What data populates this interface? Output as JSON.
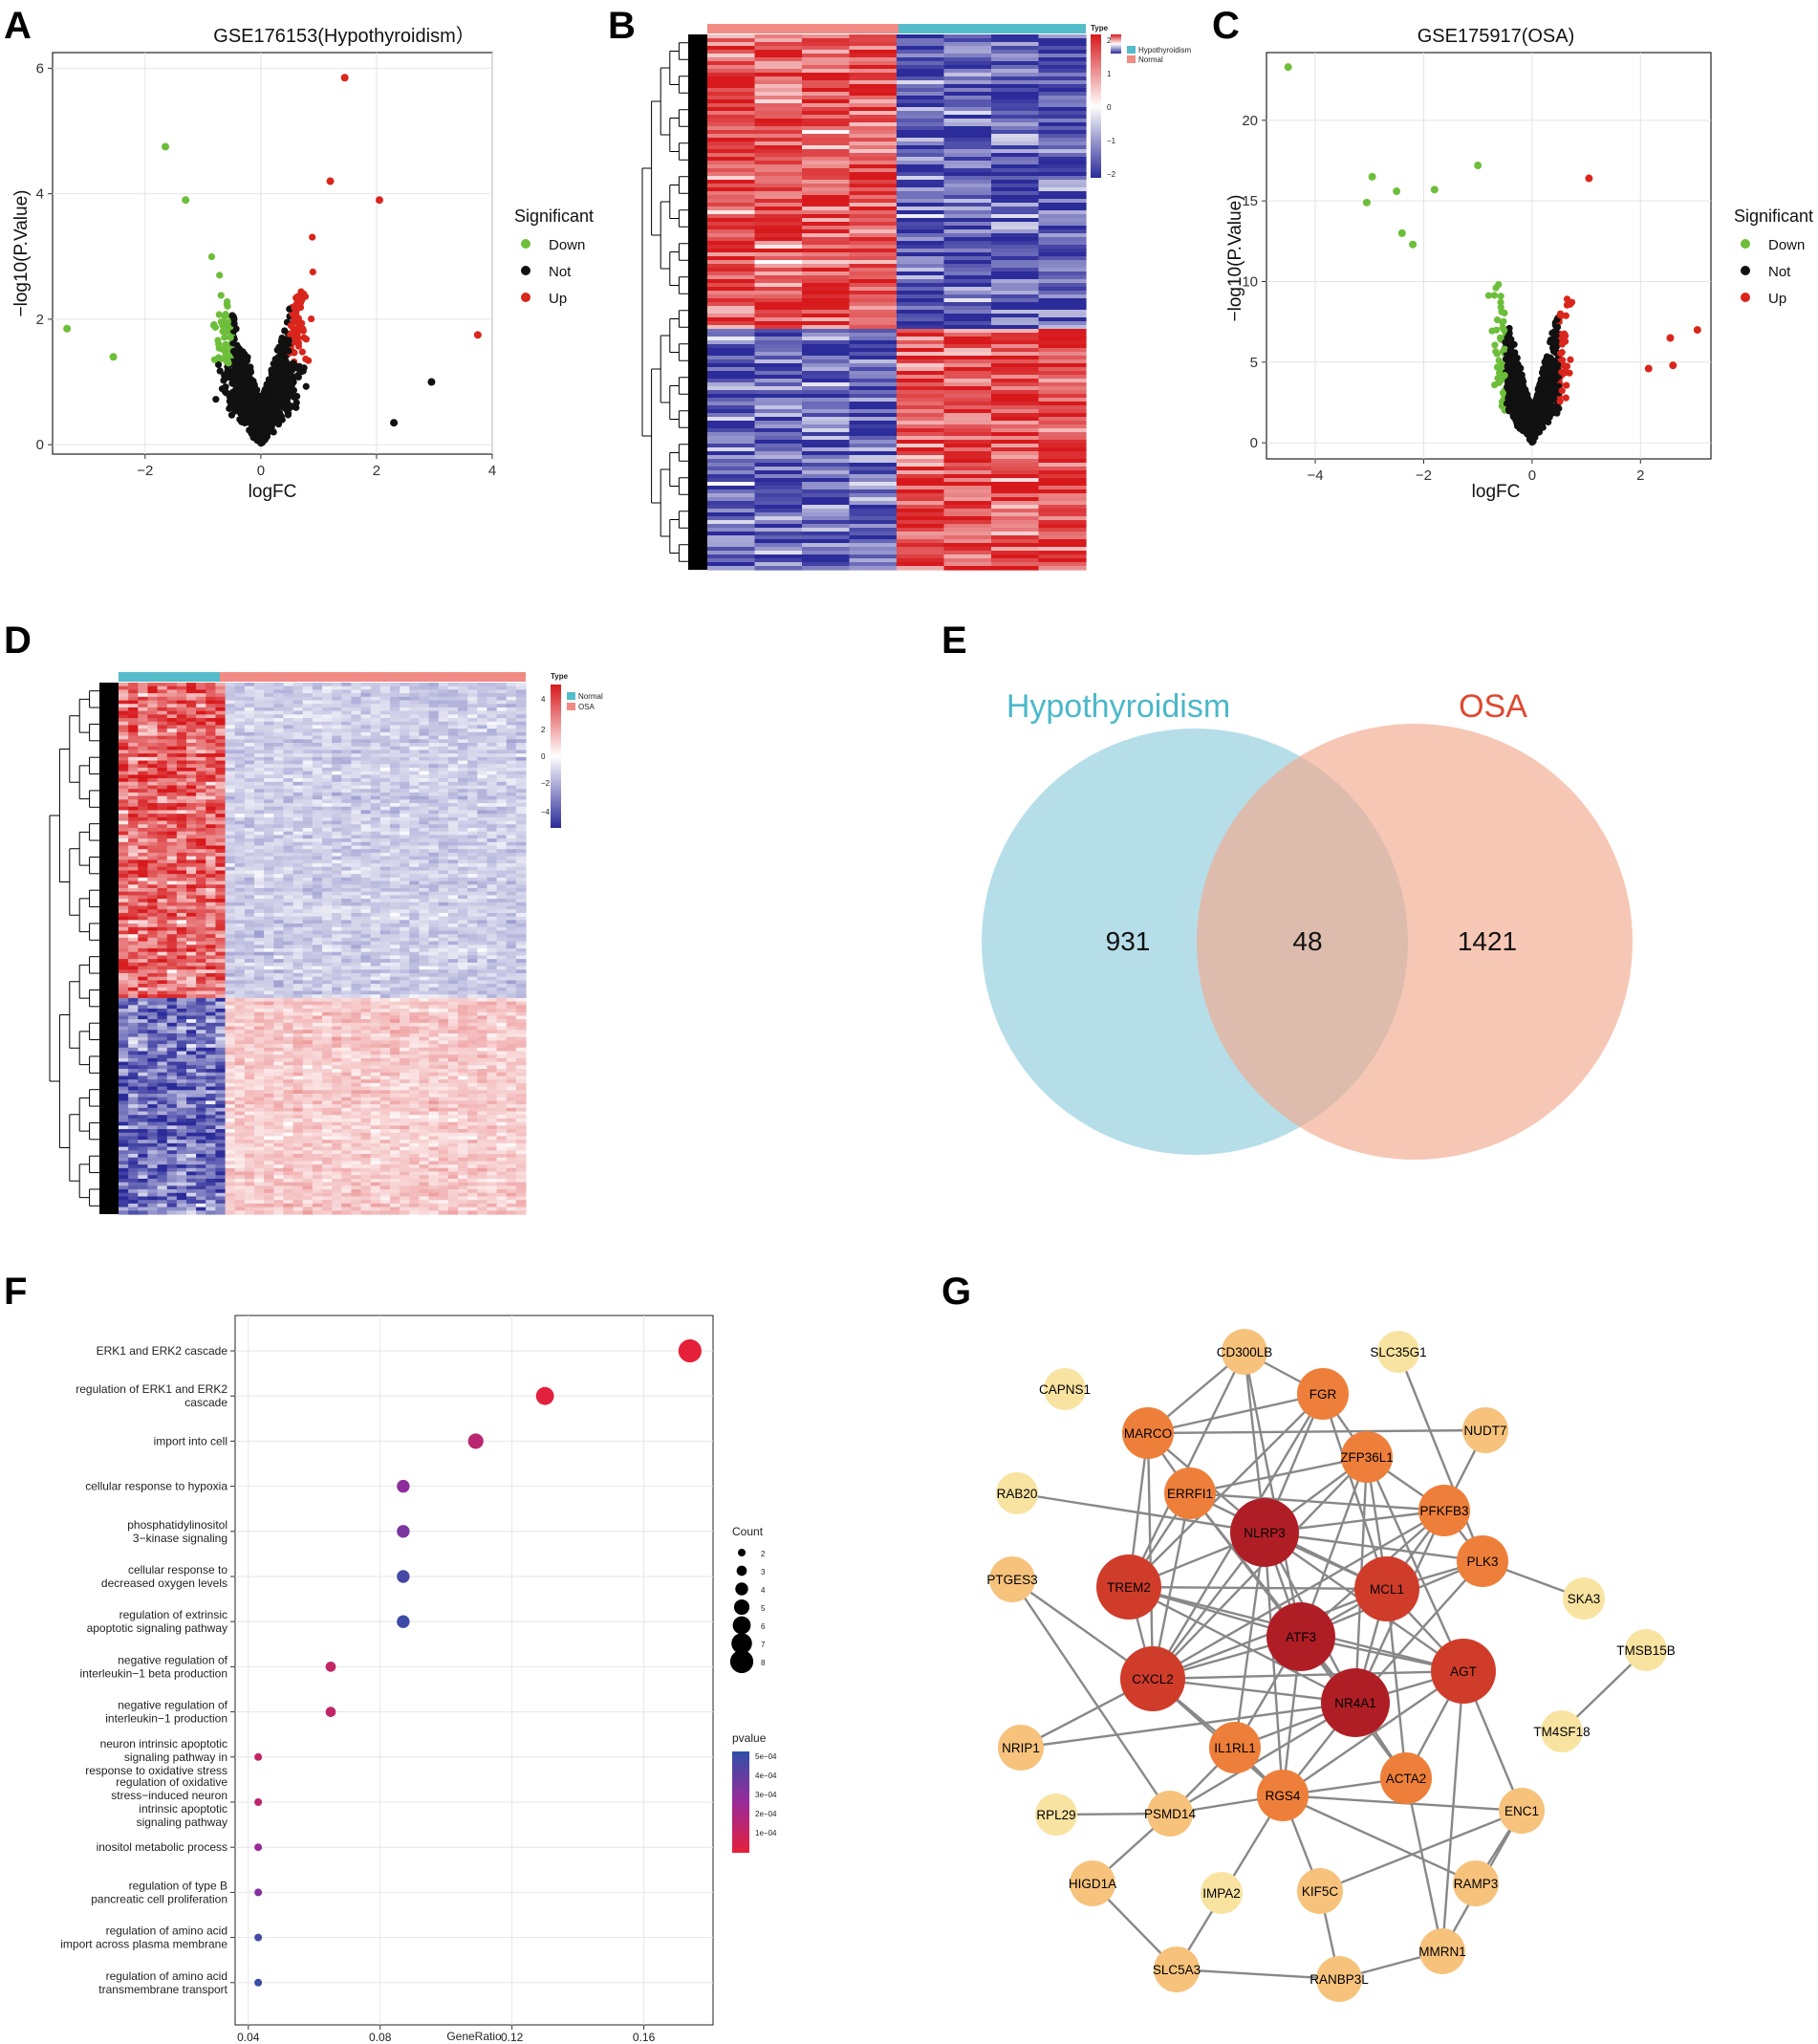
{
  "panel_letters": [
    "A",
    "B",
    "C",
    "D",
    "E",
    "F",
    "G"
  ],
  "colors": {
    "down": "#6DBE3A",
    "not": "#111111",
    "up": "#D9261C",
    "heat_high": "#D7191C",
    "heat_mid": "#FFFFFF",
    "heat_low": "#2B2B9A",
    "type_teal": "#55BCC9",
    "type_salmon": "#F08C85",
    "venn_left": "#A8D8E5",
    "venn_right": "#F3A98E",
    "venn_left_title": "#4BB8C9",
    "venn_right_title": "#E0472E"
  },
  "chart_data": [
    {
      "panel": "A",
      "type": "scatter",
      "title": "GSE176153(Hypothyroidism）",
      "xlabel": "logFC",
      "ylabel": "−log10(P.Value)",
      "xlim": [
        -3.6,
        4.0
      ],
      "ylim": [
        -0.15,
        6.25
      ],
      "xticks": [
        -2,
        0,
        2,
        4
      ],
      "yticks": [
        0,
        2,
        4,
        6
      ],
      "xtick_labels": [
        "−2",
        "0",
        "2",
        "4"
      ],
      "ytick_labels": [
        "0",
        "2",
        "4",
        "6"
      ],
      "legend": {
        "title": "Significant",
        "items": [
          "Down",
          "Not",
          "Up"
        ],
        "position": "right"
      },
      "highlight_points": [
        {
          "x": 1.45,
          "y": 5.85,
          "group": "Up"
        },
        {
          "x": -1.65,
          "y": 4.75,
          "group": "Down"
        },
        {
          "x": -3.35,
          "y": 1.85,
          "group": "Down"
        },
        {
          "x": 3.75,
          "y": 1.75,
          "group": "Up"
        },
        {
          "x": 2.95,
          "y": 1.0,
          "group": "Not"
        },
        {
          "x": 2.3,
          "y": 0.35,
          "group": "Not"
        },
        {
          "x": 2.05,
          "y": 3.9,
          "group": "Up"
        },
        {
          "x": 1.2,
          "y": 4.2,
          "group": "Up"
        },
        {
          "x": -2.55,
          "y": 1.4,
          "group": "Down"
        },
        {
          "x": -1.3,
          "y": 3.9,
          "group": "Down"
        }
      ]
    },
    {
      "panel": "B",
      "type": "heatmap",
      "legend_title": "Type",
      "groups": [
        "Hypothyroidism",
        "Normal"
      ],
      "scale_ticks": [
        "2",
        "1",
        "0",
        "−1",
        "−2"
      ]
    },
    {
      "panel": "C",
      "type": "scatter",
      "title": "GSE175917(OSA)",
      "xlabel": "logFC",
      "ylabel": "−log10(P.Value)",
      "xlim": [
        -4.9,
        3.3
      ],
      "ylim": [
        -1.0,
        24.2
      ],
      "xticks": [
        -4,
        -2,
        0,
        2
      ],
      "yticks": [
        0,
        5,
        10,
        15,
        20
      ],
      "xtick_labels": [
        "−4",
        "−2",
        "0",
        "2"
      ],
      "ytick_labels": [
        "0",
        "5",
        "10",
        "15",
        "20"
      ],
      "legend": {
        "title": "Significant",
        "items": [
          "Down",
          "Not",
          "Up"
        ],
        "position": "right"
      },
      "highlight_points": [
        {
          "x": -4.5,
          "y": 23.3,
          "group": "Down"
        },
        {
          "x": -2.95,
          "y": 16.5,
          "group": "Down"
        },
        {
          "x": -3.05,
          "y": 14.9,
          "group": "Down"
        },
        {
          "x": -2.5,
          "y": 15.6,
          "group": "Down"
        },
        {
          "x": -1.8,
          "y": 15.7,
          "group": "Down"
        },
        {
          "x": -1.0,
          "y": 17.2,
          "group": "Down"
        },
        {
          "x": 1.05,
          "y": 16.4,
          "group": "Up"
        },
        {
          "x": 2.55,
          "y": 6.5,
          "group": "Up"
        },
        {
          "x": 3.05,
          "y": 7.0,
          "group": "Up"
        },
        {
          "x": 2.6,
          "y": 4.8,
          "group": "Up"
        },
        {
          "x": 2.15,
          "y": 4.6,
          "group": "Up"
        },
        {
          "x": -2.4,
          "y": 13.0,
          "group": "Down"
        },
        {
          "x": -2.2,
          "y": 12.3,
          "group": "Down"
        }
      ]
    },
    {
      "panel": "D",
      "type": "heatmap",
      "legend_title": "Type",
      "groups": [
        "Normal",
        "OSA"
      ],
      "scale_ticks": [
        "4",
        "2",
        "0",
        "−2",
        "−4"
      ]
    },
    {
      "panel": "E",
      "type": "venn",
      "sets": [
        "Hypothyroidism",
        "OSA"
      ],
      "only_left": "931",
      "intersection": "48",
      "only_right": "1421"
    },
    {
      "panel": "F",
      "type": "scatter",
      "xlabel": "GeneRatio",
      "xlim": [
        0.036,
        0.181
      ],
      "xticks": [
        0.04,
        0.08,
        0.12,
        0.16
      ],
      "xtick_labels": [
        "0.04",
        "0.08",
        "0.12",
        "0.16"
      ],
      "categories": [
        [
          "ERK1 and ERK2 cascade"
        ],
        [
          "regulation of ERK1 and ERK2",
          "cascade"
        ],
        [
          "import into cell"
        ],
        [
          "cellular response to hypoxia"
        ],
        [
          "phosphatidylinositol",
          "3−kinase signaling"
        ],
        [
          "cellular response to",
          "decreased oxygen levels"
        ],
        [
          "regulation of extrinsic",
          "apoptotic signaling pathway"
        ],
        [
          "negative regulation of",
          "interleukin−1 beta production"
        ],
        [
          "negative regulation of",
          "interleukin−1 production"
        ],
        [
          "neuron intrinsic apoptotic",
          "signaling pathway in",
          "response to oxidative stress"
        ],
        [
          "regulation of oxidative",
          "stress−induced neuron",
          "intrinsic apoptotic",
          "signaling pathway"
        ],
        [
          "inositol metabolic process"
        ],
        [
          "regulation of type B",
          "pancreatic cell proliferation"
        ],
        [
          "regulation of amino acid",
          "import across plasma membrane"
        ],
        [
          "regulation of amino acid",
          "transmembrane transport"
        ]
      ],
      "gene_ratio": [
        0.174,
        0.13,
        0.109,
        0.087,
        0.087,
        0.087,
        0.087,
        0.065,
        0.065,
        0.043,
        0.043,
        0.043,
        0.043,
        0.043,
        0.043
      ],
      "count": [
        8,
        6,
        5,
        4,
        4,
        4,
        4,
        3,
        3,
        2,
        2,
        2,
        2,
        2,
        2
      ],
      "pvalue": [
        1e-05,
        2e-05,
        0.00015,
        0.00028,
        0.00033,
        0.00045,
        0.00047,
        0.00012,
        0.00013,
        0.00012,
        0.00015,
        0.00026,
        0.00031,
        0.00046,
        0.00048
      ],
      "size_legend": {
        "title": "Count",
        "values": [
          2,
          3,
          4,
          5,
          6,
          7,
          8
        ]
      },
      "color_legend": {
        "title": "pvalue",
        "labels": [
          "5e−04",
          "4e−04",
          "3e−04",
          "2e−04",
          "1e−04"
        ]
      }
    }
  ],
  "network": {
    "nodes": [
      {
        "id": "CD300LB",
        "tier": 4
      },
      {
        "id": "SLC35G1",
        "tier": 5
      },
      {
        "id": "CAPNS1",
        "tier": 5
      },
      {
        "id": "FGR",
        "tier": 3
      },
      {
        "id": "MARCO",
        "tier": 3
      },
      {
        "id": "NUDT7",
        "tier": 4
      },
      {
        "id": "ZFP36L1",
        "tier": 3
      },
      {
        "id": "RAB20",
        "tier": 5
      },
      {
        "id": "ERRFI1",
        "tier": 3
      },
      {
        "id": "PFKFB3",
        "tier": 3
      },
      {
        "id": "NLRP3",
        "tier": 1
      },
      {
        "id": "PTGES3",
        "tier": 4
      },
      {
        "id": "TREM2",
        "tier": 2
      },
      {
        "id": "MCL1",
        "tier": 2
      },
      {
        "id": "PLK3",
        "tier": 3
      },
      {
        "id": "SKA3",
        "tier": 5
      },
      {
        "id": "ATF3",
        "tier": 1
      },
      {
        "id": "TMSB15B",
        "tier": 5
      },
      {
        "id": "AGT",
        "tier": 2
      },
      {
        "id": "CXCL2",
        "tier": 2
      },
      {
        "id": "NR4A1",
        "tier": 1
      },
      {
        "id": "TM4SF18",
        "tier": 5
      },
      {
        "id": "NRIP1",
        "tier": 4
      },
      {
        "id": "IL1RL1",
        "tier": 3
      },
      {
        "id": "ACTA2",
        "tier": 3
      },
      {
        "id": "RGS4",
        "tier": 3
      },
      {
        "id": "ENC1",
        "tier": 4
      },
      {
        "id": "RPL29",
        "tier": 5
      },
      {
        "id": "PSMD14",
        "tier": 4
      },
      {
        "id": "RAMP3",
        "tier": 4
      },
      {
        "id": "HIGD1A",
        "tier": 4
      },
      {
        "id": "IMPA2",
        "tier": 5
      },
      {
        "id": "KIF5C",
        "tier": 4
      },
      {
        "id": "MMRN1",
        "tier": 4
      },
      {
        "id": "SLC5A3",
        "tier": 4
      },
      {
        "id": "RANBP3L",
        "tier": 4
      }
    ],
    "tier_colors": {
      "1": "#B01E25",
      "2": "#D03C2A",
      "3": "#EE7F3A",
      "4": "#F6C27C",
      "5": "#F8E3A1"
    },
    "edges": [
      [
        "CD300LB",
        "NLRP3"
      ],
      [
        "CD300LB",
        "MARCO"
      ],
      [
        "CD300LB",
        "FGR"
      ],
      [
        "CD300LB",
        "TREM2"
      ],
      [
        "CD300LB",
        "ATF3"
      ],
      [
        "SLC35G1",
        "PLK3"
      ],
      [
        "FGR",
        "NLRP3"
      ],
      [
        "FGR",
        "MARCO"
      ],
      [
        "FGR",
        "CXCL2"
      ],
      [
        "FGR",
        "ZFP36L1"
      ],
      [
        "FGR",
        "TREM2"
      ],
      [
        "FGR",
        "MCL1"
      ],
      [
        "MARCO",
        "NLRP3"
      ],
      [
        "MARCO",
        "TREM2"
      ],
      [
        "MARCO",
        "ERRFI1"
      ],
      [
        "MARCO",
        "NUDT7"
      ],
      [
        "MARCO",
        "CXCL2"
      ],
      [
        "NUDT7",
        "PFKFB3"
      ],
      [
        "ZFP36L1",
        "NLRP3"
      ],
      [
        "ZFP36L1",
        "ERRFI1"
      ],
      [
        "ZFP36L1",
        "ATF3"
      ],
      [
        "ZFP36L1",
        "MCL1"
      ],
      [
        "ZFP36L1",
        "NR4A1"
      ],
      [
        "ZFP36L1",
        "PFKFB3"
      ],
      [
        "ZFP36L1",
        "CXCL2"
      ],
      [
        "ZFP36L1",
        "AGT"
      ],
      [
        "RAB20",
        "NLRP3"
      ],
      [
        "ERRFI1",
        "ATF3"
      ],
      [
        "ERRFI1",
        "CXCL2"
      ],
      [
        "ERRFI1",
        "NR4A1"
      ],
      [
        "ERRFI1",
        "MCL1"
      ],
      [
        "ERRFI1",
        "PFKFB3"
      ],
      [
        "ERRFI1",
        "TREM2"
      ],
      [
        "PFKFB3",
        "NLRP3"
      ],
      [
        "PFKFB3",
        "ATF3"
      ],
      [
        "PFKFB3",
        "MCL1"
      ],
      [
        "PFKFB3",
        "NR4A1"
      ],
      [
        "PFKFB3",
        "PLK3"
      ],
      [
        "PFKFB3",
        "CXCL2"
      ],
      [
        "NLRP3",
        "TREM2"
      ],
      [
        "NLRP3",
        "ATF3"
      ],
      [
        "NLRP3",
        "MCL1"
      ],
      [
        "NLRP3",
        "CXCL2"
      ],
      [
        "NLRP3",
        "NR4A1"
      ],
      [
        "NLRP3",
        "PLK3"
      ],
      [
        "NLRP3",
        "AGT"
      ],
      [
        "NLRP3",
        "IL1RL1"
      ],
      [
        "NLRP3",
        "RGS4"
      ],
      [
        "PTGES3",
        "PSMD14"
      ],
      [
        "TREM2",
        "ATF3"
      ],
      [
        "TREM2",
        "CXCL2"
      ],
      [
        "TREM2",
        "NR4A1"
      ],
      [
        "TREM2",
        "AGT"
      ],
      [
        "TREM2",
        "MCL1"
      ],
      [
        "MCL1",
        "ATF3"
      ],
      [
        "MCL1",
        "CXCL2"
      ],
      [
        "MCL1",
        "NR4A1"
      ],
      [
        "MCL1",
        "AGT"
      ],
      [
        "MCL1",
        "PLK3"
      ],
      [
        "MCL1",
        "ACTA2"
      ],
      [
        "PLK3",
        "SKA3"
      ],
      [
        "PLK3",
        "ATF3"
      ],
      [
        "PLK3",
        "NR4A1"
      ],
      [
        "ATF3",
        "CXCL2"
      ],
      [
        "ATF3",
        "NR4A1"
      ],
      [
        "ATF3",
        "AGT"
      ],
      [
        "ATF3",
        "IL1RL1"
      ],
      [
        "ATF3",
        "RGS4"
      ],
      [
        "ATF3",
        "ACTA2"
      ],
      [
        "TMSB15B",
        "TM4SF18"
      ],
      [
        "AGT",
        "NR4A1"
      ],
      [
        "AGT",
        "CXCL2"
      ],
      [
        "AGT",
        "ACTA2"
      ],
      [
        "AGT",
        "RGS4"
      ],
      [
        "AGT",
        "ENC1"
      ],
      [
        "AGT",
        "MMRN1"
      ],
      [
        "CXCL2",
        "NR4A1"
      ],
      [
        "CXCL2",
        "IL1RL1"
      ],
      [
        "CXCL2",
        "NRIP1"
      ],
      [
        "CXCL2",
        "RGS4"
      ],
      [
        "NR4A1",
        "IL1RL1"
      ],
      [
        "NR4A1",
        "RGS4"
      ],
      [
        "NR4A1",
        "ACTA2"
      ],
      [
        "NR4A1",
        "NRIP1"
      ],
      [
        "NR4A1",
        "PSMD14"
      ],
      [
        "IL1RL1",
        "RGS4"
      ],
      [
        "IL1RL1",
        "PSMD14"
      ],
      [
        "ACTA2",
        "RGS4"
      ],
      [
        "ACTA2",
        "MMRN1"
      ],
      [
        "RGS4",
        "ENC1"
      ],
      [
        "RGS4",
        "KIF5C"
      ],
      [
        "RGS4",
        "PSMD14"
      ],
      [
        "RGS4",
        "RAMP3"
      ],
      [
        "RGS4",
        "SLC5A3"
      ],
      [
        "RPL29",
        "PSMD14"
      ],
      [
        "PSMD14",
        "HIGD1A"
      ],
      [
        "RAMP3",
        "ENC1"
      ],
      [
        "HIGD1A",
        "SLC5A3"
      ],
      [
        "KIF5C",
        "RANBP3L"
      ],
      [
        "KIF5C",
        "ENC1"
      ],
      [
        "MMRN1",
        "RANBP3L"
      ],
      [
        "MMRN1",
        "ENC1"
      ],
      [
        "SLC5A3",
        "RANBP3L"
      ],
      [
        "PTGES3",
        "CXCL2"
      ]
    ]
  }
}
